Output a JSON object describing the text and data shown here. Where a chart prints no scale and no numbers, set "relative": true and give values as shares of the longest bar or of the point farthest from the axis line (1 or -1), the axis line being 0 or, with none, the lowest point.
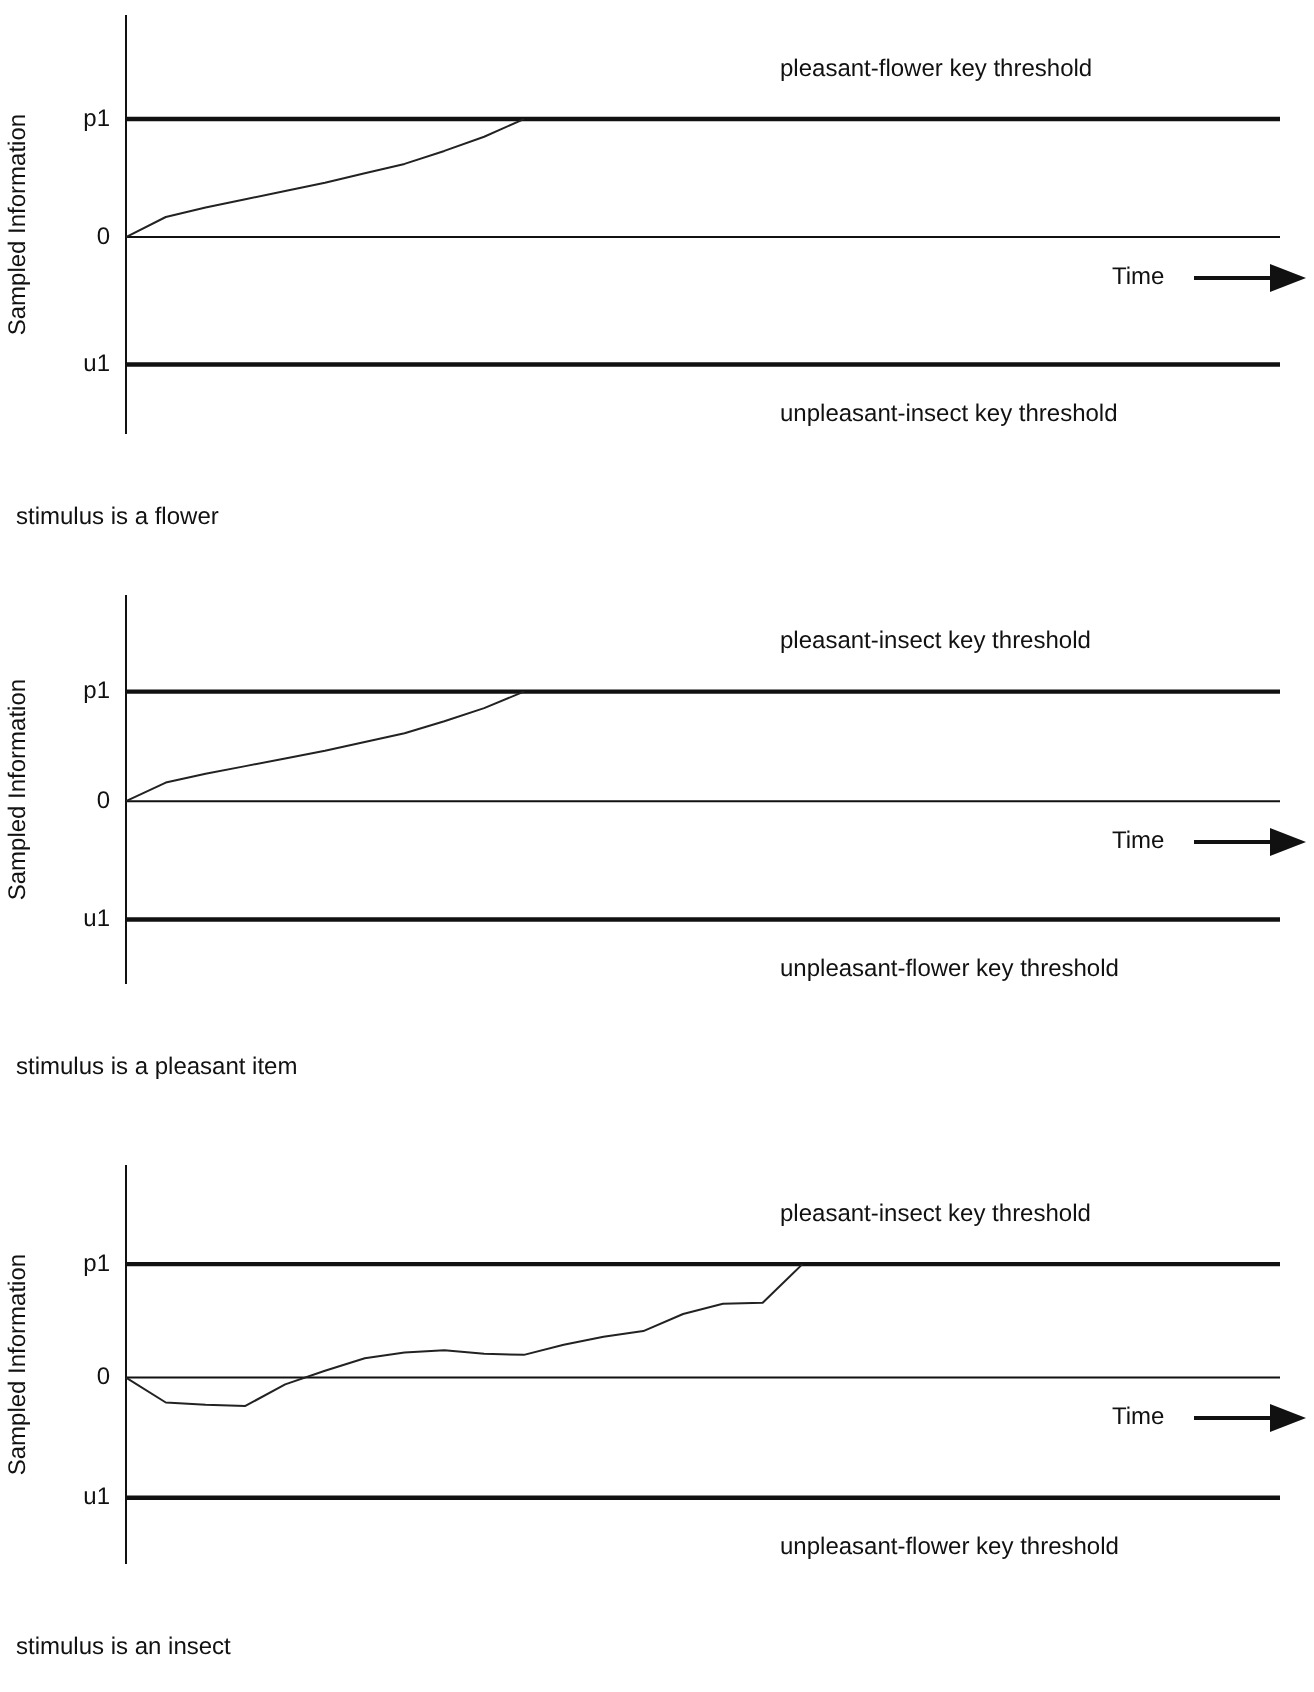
{
  "chart_data": [
    {
      "type": "line",
      "ylabel": "Sampled Information",
      "xlabel": "Time",
      "relative": true,
      "categories": [
        null,
        null,
        null,
        null,
        null,
        null,
        null,
        null,
        null,
        null,
        null,
        null,
        null,
        null,
        null,
        null,
        null,
        null,
        null,
        null,
        null,
        null,
        null,
        null,
        null,
        null,
        null,
        null,
        null,
        null
      ],
      "series": [
        {
          "color": "#222222",
          "values": [
            0,
            0.17,
            0.25,
            0.32,
            0.39,
            0.46,
            0.54,
            0.62,
            0.73,
            0.85,
            1,
            null,
            null,
            null,
            null,
            null,
            null,
            null,
            null,
            null,
            null,
            null,
            null,
            null,
            null,
            null,
            null,
            null,
            null,
            null
          ]
        }
      ],
      "marker": "none",
      "ref_lines": [
        {
          "axis": "y",
          "value": 1,
          "label": "p1"
        },
        {
          "axis": "y",
          "value": 0,
          "label": "0"
        },
        {
          "axis": "y",
          "value": -1.08,
          "label": "u1"
        }
      ],
      "annotations": [
        {
          "text": "pleasant-flower key threshold",
          "y": 1
        },
        {
          "text": "unpleasant-insect key threshold",
          "y": -1.08
        },
        "stimulus is a flower"
      ]
    },
    {
      "type": "line",
      "ylabel": "Sampled Information",
      "xlabel": "Time",
      "relative": true,
      "categories": [
        null,
        null,
        null,
        null,
        null,
        null,
        null,
        null,
        null,
        null,
        null,
        null,
        null,
        null,
        null,
        null,
        null,
        null,
        null,
        null,
        null,
        null,
        null,
        null,
        null,
        null,
        null,
        null,
        null,
        null
      ],
      "series": [
        {
          "color": "#222222",
          "values": [
            0,
            0.17,
            0.25,
            0.32,
            0.39,
            0.46,
            0.54,
            0.62,
            0.73,
            0.85,
            1,
            null,
            null,
            null,
            null,
            null,
            null,
            null,
            null,
            null,
            null,
            null,
            null,
            null,
            null,
            null,
            null,
            null,
            null,
            null
          ]
        }
      ],
      "marker": "none",
      "ref_lines": [
        {
          "axis": "y",
          "value": 1,
          "label": "p1"
        },
        {
          "axis": "y",
          "value": 0,
          "label": "0"
        },
        {
          "axis": "y",
          "value": -1.08,
          "label": "u1"
        }
      ],
      "annotations": [
        {
          "text": "pleasant-insect key threshold",
          "y": 1
        },
        {
          "text": "unpleasant-flower key threshold",
          "y": -1.08
        },
        "stimulus is a pleasant item"
      ]
    },
    {
      "type": "line",
      "ylabel": "Sampled Information",
      "xlabel": "Time",
      "relative": true,
      "categories": [
        null,
        null,
        null,
        null,
        null,
        null,
        null,
        null,
        null,
        null,
        null,
        null,
        null,
        null,
        null,
        null,
        null,
        null,
        null,
        null,
        null,
        null,
        null,
        null,
        null,
        null,
        null,
        null,
        null,
        null
      ],
      "series": [
        {
          "color": "#222222",
          "values": [
            0,
            -0.22,
            -0.24,
            -0.25,
            -0.06,
            0.06,
            0.17,
            0.22,
            0.24,
            0.21,
            0.2,
            0.29,
            0.36,
            0.41,
            0.56,
            0.65,
            0.66,
            1,
            null,
            null,
            null,
            null,
            null,
            null,
            null,
            null,
            null,
            null,
            null,
            null
          ]
        }
      ],
      "marker": "none",
      "ref_lines": [
        {
          "axis": "y",
          "value": 1,
          "label": "p1"
        },
        {
          "axis": "y",
          "value": 0,
          "label": "0"
        },
        {
          "axis": "y",
          "value": -1.06,
          "label": "u1"
        }
      ],
      "annotations": [
        {
          "text": "pleasant-insect key threshold",
          "y": 1
        },
        {
          "text": "unpleasant-flower key threshold",
          "y": -1.06
        },
        "stimulus is an insect"
      ]
    }
  ]
}
